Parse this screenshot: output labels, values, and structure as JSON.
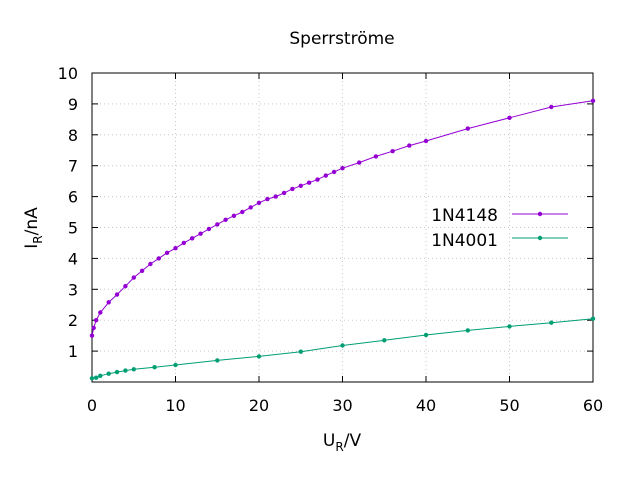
{
  "chart_data": {
    "type": "line",
    "title": "Sperrströme",
    "xlabel_main": "U",
    "xlabel_sub": "R",
    "xlabel_rest": "/V",
    "ylabel_main": "I",
    "ylabel_sub": "R",
    "ylabel_rest": "/nA",
    "xlim": [
      0,
      60
    ],
    "ylim": [
      0,
      10
    ],
    "xticks": [
      0,
      10,
      20,
      30,
      40,
      50,
      60
    ],
    "yticks": [
      1,
      2,
      3,
      4,
      5,
      6,
      7,
      8,
      9,
      10
    ],
    "grid": true,
    "legend_position": "right",
    "series": [
      {
        "name": "1N4148",
        "color": "#9400d3",
        "points": [
          [
            0,
            1.5
          ],
          [
            0.2,
            1.75
          ],
          [
            0.5,
            2.0
          ],
          [
            1,
            2.25
          ],
          [
            2,
            2.58
          ],
          [
            3,
            2.83
          ],
          [
            4,
            3.1
          ],
          [
            5,
            3.38
          ],
          [
            6,
            3.6
          ],
          [
            7,
            3.82
          ],
          [
            8,
            4.0
          ],
          [
            9,
            4.18
          ],
          [
            10,
            4.33
          ],
          [
            11,
            4.5
          ],
          [
            12,
            4.65
          ],
          [
            13,
            4.8
          ],
          [
            14,
            4.95
          ],
          [
            15,
            5.1
          ],
          [
            16,
            5.25
          ],
          [
            17,
            5.38
          ],
          [
            18,
            5.5
          ],
          [
            19,
            5.65
          ],
          [
            20,
            5.8
          ],
          [
            21,
            5.92
          ],
          [
            22,
            6.0
          ],
          [
            23,
            6.12
          ],
          [
            24,
            6.25
          ],
          [
            25,
            6.35
          ],
          [
            26,
            6.45
          ],
          [
            27,
            6.55
          ],
          [
            28,
            6.68
          ],
          [
            29,
            6.8
          ],
          [
            30,
            6.92
          ],
          [
            32,
            7.1
          ],
          [
            34,
            7.3
          ],
          [
            36,
            7.47
          ],
          [
            38,
            7.65
          ],
          [
            40,
            7.8
          ],
          [
            45,
            8.2
          ],
          [
            50,
            8.55
          ],
          [
            55,
            8.9
          ],
          [
            60,
            9.1
          ]
        ]
      },
      {
        "name": "1N4001",
        "color": "#009e73",
        "points": [
          [
            0,
            0.12
          ],
          [
            0.5,
            0.14
          ],
          [
            1,
            0.2
          ],
          [
            2,
            0.27
          ],
          [
            3,
            0.32
          ],
          [
            4,
            0.37
          ],
          [
            5,
            0.41
          ],
          [
            7.5,
            0.48
          ],
          [
            10,
            0.55
          ],
          [
            15,
            0.7
          ],
          [
            20,
            0.83
          ],
          [
            25,
            0.98
          ],
          [
            30,
            1.18
          ],
          [
            35,
            1.35
          ],
          [
            40,
            1.52
          ],
          [
            45,
            1.67
          ],
          [
            50,
            1.8
          ],
          [
            55,
            1.92
          ],
          [
            60,
            2.05
          ]
        ]
      }
    ]
  }
}
